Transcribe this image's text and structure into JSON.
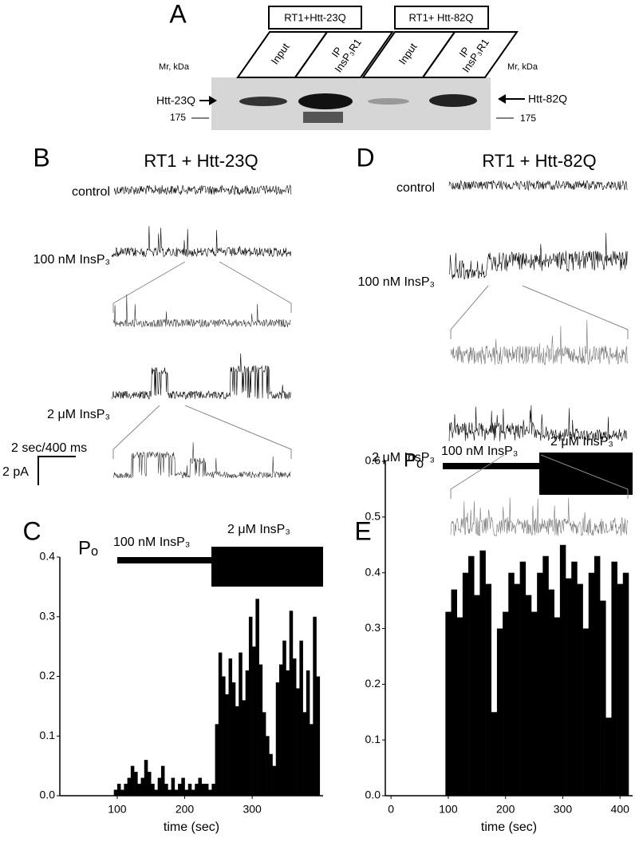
{
  "panel_a": {
    "label": "A",
    "groups": [
      "RT1+Htt-23Q",
      "RT1+ Htt-82Q"
    ],
    "lanes": [
      [
        "Input"
      ],
      [
        "IP",
        "InsP₃R1"
      ],
      [
        "Input"
      ],
      [
        "IP",
        "InsP₃R1"
      ]
    ],
    "mr_labels": [
      "Mr, kDa",
      "Mr, kDa"
    ],
    "bands": [
      "Htt-23Q",
      "Htt-82Q"
    ],
    "markers": [
      "175",
      "175"
    ]
  },
  "panel_b": {
    "label": "B",
    "title": "RT1 + Htt-23Q",
    "traces": [
      "control",
      "100 nM InsP₃",
      "2 μM InsP₃"
    ],
    "scale_time": "2 sec/400 ms",
    "scale_current": "2 pA"
  },
  "panel_d": {
    "label": "D",
    "title": "RT1 + Htt-82Q",
    "traces": [
      "control",
      "100 nM InsP₃",
      "2 μM InsP₃"
    ]
  },
  "chart_data": [
    {
      "type": "histogram",
      "panel": "C",
      "ylabel": "Pₒ",
      "xlabel": "time (sec)",
      "annotations": [
        "100 nM InsP₃",
        "2 μM InsP₃"
      ],
      "color": "#000000",
      "bins": [
        95,
        100,
        105,
        110,
        115,
        120,
        125,
        130,
        135,
        140,
        145,
        150,
        155,
        160,
        165,
        170,
        175,
        180,
        185,
        190,
        195,
        200,
        205,
        210,
        215,
        220,
        225,
        230,
        235,
        240,
        245,
        250,
        255,
        260,
        265,
        270,
        275,
        280,
        285,
        290,
        295,
        300,
        305,
        310,
        315,
        320,
        325,
        330,
        335,
        340,
        345,
        350,
        355,
        360,
        365,
        370,
        375,
        380,
        385,
        390,
        395,
        400
      ],
      "values": [
        0.01,
        0.02,
        0.01,
        0.02,
        0.03,
        0.05,
        0.04,
        0.02,
        0.03,
        0.06,
        0.04,
        0.02,
        0.01,
        0.03,
        0.05,
        0.02,
        0.01,
        0.03,
        0.01,
        0.02,
        0.03,
        0.01,
        0.02,
        0.01,
        0.02,
        0.03,
        0.02,
        0.02,
        0.01,
        0.02,
        0.12,
        0.24,
        0.2,
        0.17,
        0.23,
        0.19,
        0.15,
        0.24,
        0.16,
        0.21,
        0.3,
        0.25,
        0.33,
        0.22,
        0.14,
        0.1,
        0.07,
        0.05,
        0.19,
        0.22,
        0.26,
        0.21,
        0.31,
        0.23,
        0.18,
        0.26,
        0.14,
        0.21,
        0.12,
        0.3,
        0.2
      ],
      "xlim": [
        15,
        405
      ],
      "ylim": [
        0,
        0.4
      ],
      "xticks": [
        100,
        200,
        300
      ],
      "yticks": [
        {
          "value": 0,
          "label": "0.0"
        },
        0.1,
        0.2,
        0.3,
        0.4
      ]
    },
    {
      "type": "histogram",
      "panel": "E",
      "ylabel": "Pₒ",
      "xlabel": "time (sec)",
      "annotations": [
        "100 nM InsP₃",
        "2 μM InsP₃"
      ],
      "color": "#000000",
      "bins": [
        95,
        105,
        115,
        125,
        135,
        145,
        155,
        165,
        175,
        185,
        195,
        205,
        215,
        225,
        235,
        245,
        255,
        265,
        275,
        285,
        295,
        305,
        315,
        325,
        335,
        345,
        355,
        365,
        375,
        385,
        395,
        405,
        415
      ],
      "values": [
        0.33,
        0.37,
        0.32,
        0.4,
        0.43,
        0.36,
        0.44,
        0.38,
        0.15,
        0.3,
        0.33,
        0.4,
        0.38,
        0.42,
        0.36,
        0.33,
        0.4,
        0.43,
        0.37,
        0.32,
        0.45,
        0.39,
        0.42,
        0.38,
        0.3,
        0.4,
        0.43,
        0.35,
        0.14,
        0.42,
        0.38,
        0.4
      ],
      "xlim": [
        -10,
        422
      ],
      "ylim": [
        0,
        0.6
      ],
      "xticks": [
        0,
        100,
        200,
        300,
        400
      ],
      "yticks": [
        {
          "value": 0,
          "label": "0.0"
        },
        0.1,
        0.2,
        0.3,
        0.4,
        0.5,
        0.6
      ]
    }
  ]
}
